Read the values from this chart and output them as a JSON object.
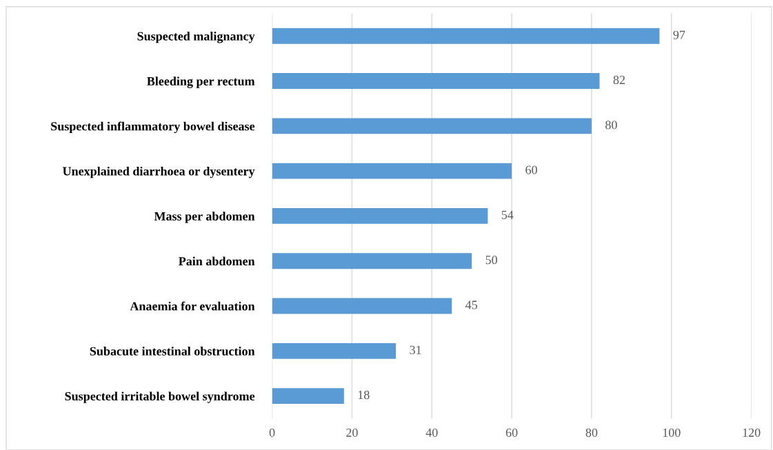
{
  "chart_data": {
    "type": "bar",
    "orientation": "horizontal",
    "categories": [
      "Suspected malignancy",
      "Bleeding per rectum",
      "Suspected inflammatory bowel disease",
      "Unexplained diarrhoea or dysentery",
      "Mass per abdomen",
      "Pain abdomen",
      "Anaemia for evaluation",
      "Subacute intestinal obstruction",
      "Suspected irritable bowel syndrome"
    ],
    "values": [
      97,
      82,
      80,
      60,
      54,
      50,
      45,
      31,
      18
    ],
    "color": "#5b9bd5",
    "xlim": [
      0,
      120
    ],
    "xticks": [
      0,
      20,
      40,
      60,
      80,
      100,
      120
    ],
    "grid": "x",
    "data_labels": true
  }
}
